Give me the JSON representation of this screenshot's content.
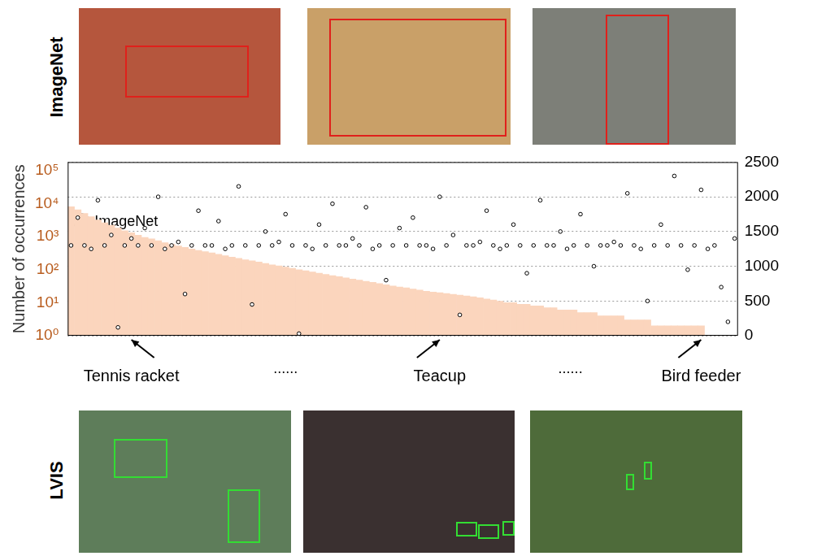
{
  "panel_labels": [
    "ImageNet",
    "LVIS"
  ],
  "chart_data": {
    "type": "bar",
    "categories": [
      null,
      null,
      null,
      null,
      null,
      null,
      null,
      null,
      null,
      "Tennis racket",
      null,
      null,
      null,
      null,
      null,
      null,
      null,
      null,
      null,
      null,
      null,
      null,
      null,
      null,
      null,
      null,
      null,
      null,
      null,
      null,
      null,
      null,
      null,
      null,
      null,
      null,
      null,
      null,
      null,
      null,
      null,
      null,
      null,
      null,
      null,
      null,
      null,
      null,
      null,
      null,
      null,
      null,
      null,
      null,
      null,
      "Teacup",
      null,
      null,
      null,
      null,
      null,
      null,
      null,
      null,
      null,
      null,
      null,
      null,
      null,
      null,
      null,
      null,
      null,
      null,
      null,
      null,
      null,
      null,
      null,
      null,
      null,
      null,
      null,
      null,
      null,
      null,
      null,
      null,
      null,
      null,
      null,
      null,
      null,
      null,
      "Bird feeder",
      null,
      null,
      null,
      null,
      null
    ],
    "series": [
      {
        "name": "LVIS",
        "type": "bar",
        "axis": "y",
        "color": "#fbd5bd",
        "values": [
          8000,
          6500,
          5000,
          4000,
          3200,
          2600,
          2200,
          1800,
          1500,
          1300,
          1100,
          950,
          850,
          750,
          650,
          580,
          520,
          470,
          420,
          380,
          350,
          320,
          290,
          265,
          240,
          220,
          200,
          185,
          170,
          155,
          140,
          130,
          120,
          110,
          100,
          92,
          85,
          78,
          72,
          66,
          61,
          56,
          52,
          48,
          44,
          41,
          38,
          35,
          32,
          30,
          28,
          26,
          24,
          22,
          21,
          20,
          19,
          18,
          17,
          16,
          15,
          14,
          13,
          12,
          11,
          10,
          10,
          9,
          9,
          8,
          8,
          7,
          7,
          6,
          6,
          6,
          5,
          5,
          5,
          4,
          4,
          4,
          4,
          3,
          3,
          3,
          3,
          2,
          2,
          2,
          2,
          2,
          2,
          2,
          2,
          1,
          1,
          1,
          1,
          1
        ]
      },
      {
        "name": "ImageNet",
        "type": "scatter",
        "axis": "y2",
        "color": "#000000",
        "marker": "circle",
        "values": [
          1300,
          1700,
          1300,
          1250,
          1950,
          1300,
          1450,
          120,
          1300,
          1400,
          1300,
          1550,
          1300,
          2000,
          1250,
          1300,
          1350,
          600,
          1300,
          1800,
          1300,
          1300,
          1650,
          1250,
          1300,
          2150,
          1300,
          450,
          1300,
          1500,
          1300,
          1350,
          1750,
          1300,
          30,
          1300,
          1250,
          1600,
          1300,
          1900,
          1300,
          1300,
          1400,
          1300,
          1850,
          1250,
          1300,
          800,
          1300,
          1550,
          1300,
          1700,
          1300,
          1300,
          1250,
          2000,
          1300,
          1450,
          300,
          1300,
          1300,
          1350,
          1800,
          1300,
          1250,
          1300,
          1600,
          1300,
          900,
          1300,
          1950,
          1300,
          1300,
          1500,
          1250,
          1300,
          1750,
          1300,
          1000,
          1300,
          1300,
          1350,
          1300,
          2050,
          1300,
          1250,
          500,
          1300,
          1600,
          1300,
          2300,
          1300,
          950,
          1300,
          2100,
          1250,
          1300,
          700,
          200,
          1400
        ]
      }
    ],
    "y_label": "Number of occurrences",
    "log": "y",
    "ylim": [
      1,
      180000
    ],
    "yticks": [
      {
        "value": 1,
        "label": "10⁰"
      },
      {
        "value": 10,
        "label": "10¹"
      },
      {
        "value": 100,
        "label": "10²"
      },
      {
        "value": 1000,
        "label": "10³"
      },
      {
        "value": 10000,
        "label": "10⁴"
      },
      {
        "value": 100000,
        "label": "10⁵"
      }
    ],
    "y2lim": [
      0,
      2500
    ],
    "y2ticks": [
      0,
      500,
      1000,
      1500,
      2000,
      2500
    ],
    "grid": true,
    "legend": "top",
    "annotations": [
      "......",
      "......"
    ]
  }
}
